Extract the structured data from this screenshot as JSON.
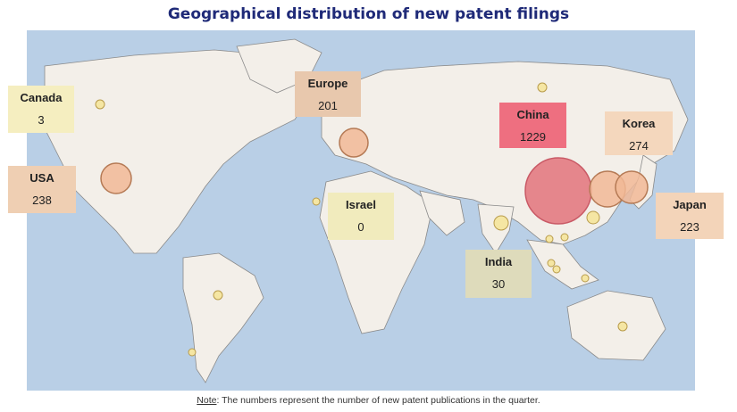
{
  "title": "Geographical distribution of new patent filings",
  "note": {
    "prefix": "Note",
    "text": ": The numbers represent the number of new patent publications in the quarter."
  },
  "regions": [
    {
      "name": "Canada",
      "value": "3",
      "color": "#f5eec0"
    },
    {
      "name": "USA",
      "value": "238",
      "color": "#efcfb3"
    },
    {
      "name": "Europe",
      "value": "201",
      "color": "#e8c8ad"
    },
    {
      "name": "Israel",
      "value": "0",
      "color": "#f1ebbd"
    },
    {
      "name": "China",
      "value": "1229",
      "color": "#ee6f80"
    },
    {
      "name": "Korea",
      "value": "274",
      "color": "#f4d7bd"
    },
    {
      "name": "Japan",
      "value": "223",
      "color": "#f3d4b9"
    },
    {
      "name": "India",
      "value": "30",
      "color": "#dedbbb"
    }
  ],
  "colors": {
    "ocean": "#b9cfe6",
    "land": "#f3efe9",
    "large_bubble": "#e37a82",
    "mid_bubble": "#f1b996",
    "small_bubble": "#f5e6a3"
  }
}
